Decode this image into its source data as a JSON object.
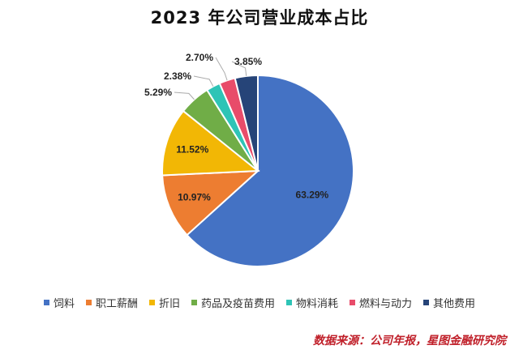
{
  "chart_data": {
    "type": "pie",
    "title": "2023 年公司营业成本占比",
    "slices": [
      {
        "label": "饲料",
        "value": 63.29,
        "value_label": "63.29%",
        "color": "#4472C4"
      },
      {
        "label": "职工薪酬",
        "value": 10.97,
        "value_label": "10.97%",
        "color": "#ED7D31"
      },
      {
        "label": "折旧",
        "value": 11.52,
        "value_label": "11.52%",
        "color": "#F2B705"
      },
      {
        "label": "药品及疫苗费用",
        "value": 5.29,
        "value_label": "5.29%",
        "color": "#70AD47"
      },
      {
        "label": "物料消耗",
        "value": 2.38,
        "value_label": "2.38%",
        "color": "#2EC4B6"
      },
      {
        "label": "燃料与动力",
        "value": 2.7,
        "value_label": "2.70%",
        "color": "#E84C6A"
      },
      {
        "label": "其他费用",
        "value": 3.85,
        "value_label": "3.85%",
        "color": "#264478"
      }
    ],
    "legend_position": "bottom"
  },
  "source": "数据来源：公司年报，星图金融研究院"
}
